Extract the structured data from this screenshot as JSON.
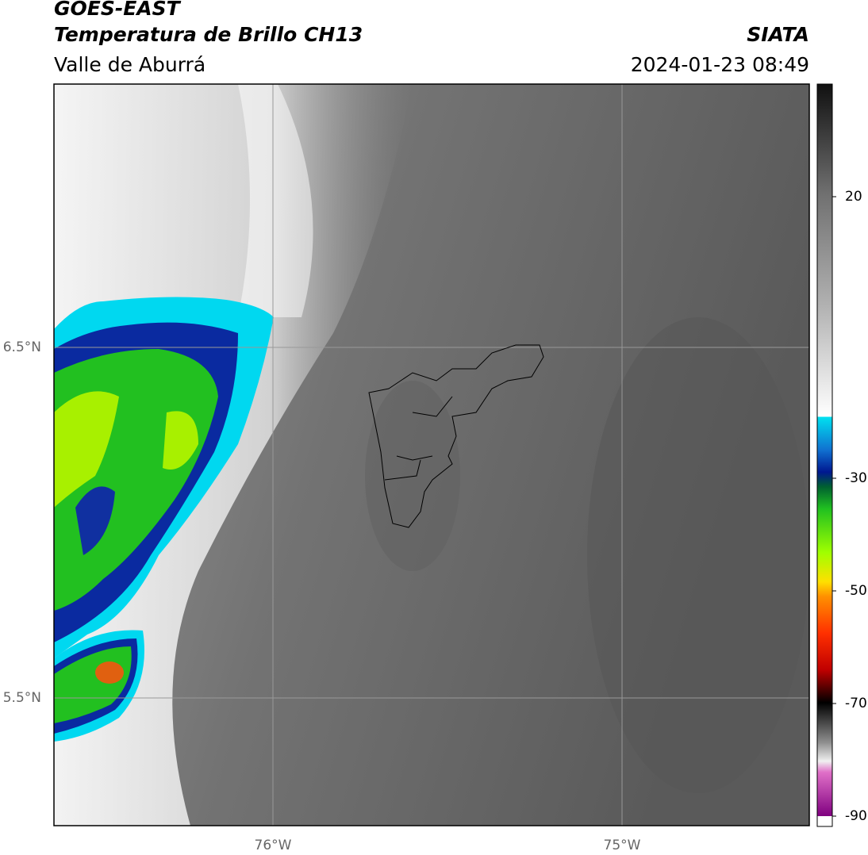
{
  "header": {
    "title": "GOES-EAST",
    "subtitle": "Temperatura de Brillo CH13",
    "region": "Valle de Aburrá",
    "agency": "SIATA",
    "timestamp": "2024-01-23 08:49"
  },
  "map": {
    "lat_labels": [
      "6.5°N",
      "5.5°N"
    ],
    "lon_labels": [
      "76°W",
      "75°W"
    ]
  },
  "colorbar": {
    "lim": [
      -90,
      40
    ],
    "ticks": [
      20,
      -30,
      -50,
      -70,
      -90
    ]
  }
}
